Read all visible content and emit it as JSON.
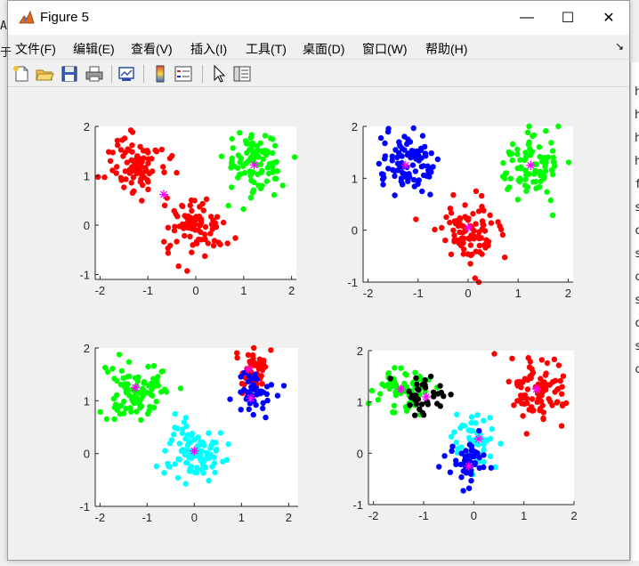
{
  "window": {
    "title": "Figure 5",
    "minimize_glyph": "—",
    "maximize_glyph": "☐",
    "close_glyph": "✕"
  },
  "menu": {
    "items": [
      "文件(F)",
      "编辑(E)",
      "查看(V)",
      "插入(I)",
      "工具(T)",
      "桌面(D)",
      "窗口(W)",
      "帮助(H)"
    ],
    "dock_glyph": "↘"
  },
  "toolbar": {
    "icons": [
      "new-figure-icon",
      "open-file-icon",
      "save-icon",
      "print-icon",
      "link-plot-icon",
      "insert-colorbar-icon",
      "insert-legend-icon",
      "edit-plot-icon",
      "property-inspector-icon"
    ]
  },
  "background_glimpse": {
    "left_chars": [
      "A",
      "于"
    ],
    "right_chars": [
      "h",
      "h",
      "h",
      "h",
      "f",
      "s",
      "c",
      "s",
      "c",
      "s",
      "c",
      "s",
      "c"
    ]
  },
  "colors": {
    "red": "#ff0000",
    "green": "#00ff00",
    "blue": "#0000ff",
    "cyan": "#00ffff",
    "black": "#000000",
    "centroid": "#ff00ff"
  },
  "chart_data": [
    {
      "type": "scatter",
      "xlim": [
        -2.1,
        2.1
      ],
      "ylim": [
        -1.1,
        2.0
      ],
      "xticks": [
        "-2",
        "-1",
        "0",
        "1",
        "2"
      ],
      "yticks": [
        "-1",
        "0",
        "1",
        "2"
      ],
      "clusters": [
        {
          "color": "red",
          "center": [
            -1.25,
            1.25
          ],
          "spread": 0.3,
          "count": 90
        },
        {
          "color": "red",
          "center": [
            0.0,
            0.0
          ],
          "spread": 0.3,
          "count": 90
        },
        {
          "color": "green",
          "center": [
            1.25,
            1.25
          ],
          "spread": 0.3,
          "count": 90
        }
      ],
      "centroids": [
        [
          -0.67,
          0.62
        ],
        [
          1.22,
          1.22
        ]
      ]
    },
    {
      "type": "scatter",
      "xlim": [
        -2.1,
        2.1
      ],
      "ylim": [
        -1.0,
        2.0
      ],
      "xticks": [
        "-2",
        "-1",
        "0",
        "1",
        "2"
      ],
      "yticks": [
        "-1",
        "0",
        "1",
        "2"
      ],
      "clusters": [
        {
          "color": "blue",
          "center": [
            -1.25,
            1.25
          ],
          "spread": 0.3,
          "count": 90
        },
        {
          "color": "red",
          "center": [
            0.0,
            0.0
          ],
          "spread": 0.3,
          "count": 90
        },
        {
          "color": "green",
          "center": [
            1.25,
            1.25
          ],
          "spread": 0.3,
          "count": 90
        }
      ],
      "centroids": [
        [
          -1.25,
          1.25
        ],
        [
          0.0,
          0.05
        ],
        [
          1.25,
          1.25
        ]
      ]
    },
    {
      "type": "scatter",
      "xlim": [
        -2.1,
        2.2
      ],
      "ylim": [
        -1.0,
        2.0
      ],
      "xticks": [
        "-2",
        "-1",
        "0",
        "1",
        "2"
      ],
      "yticks": [
        "-1",
        "0",
        "1",
        "2"
      ],
      "clusters": [
        {
          "color": "green",
          "center": [
            -1.25,
            1.25
          ],
          "spread": 0.3,
          "count": 90
        },
        {
          "color": "red",
          "center": [
            1.25,
            1.6
          ],
          "spread": 0.2,
          "count": 45
        },
        {
          "color": "blue",
          "center": [
            1.25,
            1.1
          ],
          "spread": 0.22,
          "count": 45
        },
        {
          "color": "cyan",
          "center": [
            0.0,
            0.0
          ],
          "spread": 0.3,
          "count": 90
        }
      ],
      "centroids": [
        [
          -1.25,
          1.25
        ],
        [
          1.15,
          1.6
        ],
        [
          1.2,
          1.05
        ],
        [
          0.0,
          0.05
        ]
      ]
    },
    {
      "type": "scatter",
      "xlim": [
        -2.1,
        2.0
      ],
      "ylim": [
        -1.0,
        2.0
      ],
      "xticks": [
        "-2",
        "-1",
        "0",
        "1",
        "2"
      ],
      "yticks": [
        "-1",
        "0",
        "1",
        "2"
      ],
      "clusters": [
        {
          "color": "green",
          "center": [
            -1.45,
            1.25
          ],
          "spread": 0.25,
          "count": 60
        },
        {
          "color": "black",
          "center": [
            -0.95,
            1.1
          ],
          "spread": 0.25,
          "count": 35
        },
        {
          "color": "red",
          "center": [
            1.25,
            1.25
          ],
          "spread": 0.3,
          "count": 90
        },
        {
          "color": "cyan",
          "center": [
            0.1,
            0.25
          ],
          "spread": 0.25,
          "count": 50
        },
        {
          "color": "blue",
          "center": [
            -0.1,
            -0.25
          ],
          "spread": 0.22,
          "count": 45
        }
      ],
      "centroids": [
        [
          -1.45,
          1.25
        ],
        [
          -0.95,
          1.1
        ],
        [
          1.25,
          1.25
        ],
        [
          0.1,
          0.28
        ],
        [
          -0.1,
          -0.25
        ]
      ]
    }
  ]
}
